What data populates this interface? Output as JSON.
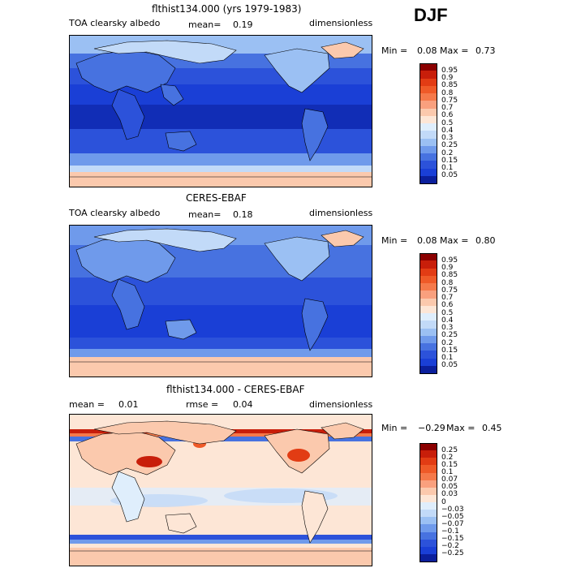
{
  "season": "DJF",
  "panels": [
    {
      "title": "flthist134.000 (yrs 1979-1983)",
      "left_label": "TOA clearsky albedo",
      "mid_label": "mean=",
      "mid_value": "0.19",
      "units": "dimensionless",
      "min_label": "Min =",
      "min_value": "0.08",
      "max_label": "Max =",
      "max_value": "0.73",
      "levels": [
        "0.95",
        "0.9",
        "0.85",
        "0.8",
        "0.75",
        "0.7",
        "0.6",
        "0.5",
        "0.4",
        "0.3",
        "0.25",
        "0.2",
        "0.15",
        "0.1",
        "0.05"
      ],
      "colors": [
        "#8b0000",
        "#c81e0a",
        "#e23c14",
        "#ef5a28",
        "#f5794a",
        "#f9a07e",
        "#fbc9ad",
        "#fde6d6",
        "#dfeefc",
        "#c2daf8",
        "#9bc0f3",
        "#6f9aeb",
        "#4772e0",
        "#2c52da",
        "#1a3fd6",
        "#0b1f9c"
      ]
    },
    {
      "title": "CERES-EBAF",
      "left_label": "TOA clearsky albedo",
      "mid_label": "mean=",
      "mid_value": "0.18",
      "units": "dimensionless",
      "min_label": "Min =",
      "min_value": "0.08",
      "max_label": "Max =",
      "max_value": "0.80",
      "levels": [
        "0.95",
        "0.9",
        "0.85",
        "0.8",
        "0.75",
        "0.7",
        "0.6",
        "0.5",
        "0.4",
        "0.3",
        "0.25",
        "0.2",
        "0.15",
        "0.1",
        "0.05"
      ],
      "colors": [
        "#8b0000",
        "#c81e0a",
        "#e23c14",
        "#ef5a28",
        "#f5794a",
        "#f9a07e",
        "#fbc9ad",
        "#fde6d6",
        "#dfeefc",
        "#c2daf8",
        "#9bc0f3",
        "#6f9aeb",
        "#4772e0",
        "#2c52da",
        "#1a3fd6",
        "#0b1f9c"
      ]
    },
    {
      "title": "flthist134.000 - CERES-EBAF",
      "left_label": "mean =",
      "left_value": "0.01",
      "mid_label": "rmse =",
      "mid_value": "0.04",
      "units": "dimensionless",
      "min_label": "Min =",
      "min_value": "−0.29",
      "max_label": "Max =",
      "max_value": "0.45",
      "levels": [
        "0.25",
        "0.2",
        "0.15",
        "0.1",
        "0.07",
        "0.05",
        "0.03",
        "0",
        "−0.03",
        "−0.05",
        "−0.07",
        "−0.1",
        "−0.15",
        "−0.2",
        "−0.25"
      ],
      "colors": [
        "#8b0000",
        "#c81e0a",
        "#e23c14",
        "#ef5a28",
        "#f5794a",
        "#f9a07e",
        "#fbc9ad",
        "#fde6d6",
        "#dfeefc",
        "#c2daf8",
        "#9bc0f3",
        "#6f9aeb",
        "#4772e0",
        "#2c52da",
        "#1a3fd6",
        "#0b1f9c"
      ]
    }
  ]
}
